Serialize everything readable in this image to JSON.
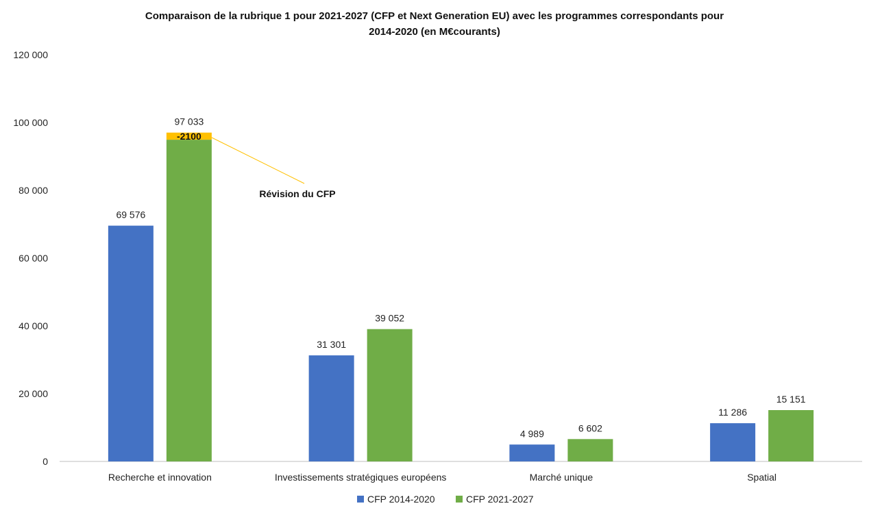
{
  "title_line1": "Comparaison de la rubrique 1 pour 2021-2027 (CFP et Next Generation EU) avec les programmes correspondants pour",
  "title_line2": "2014-2020 (en M€courants)",
  "colors": {
    "series1": "#4472C4",
    "series2": "#70AD47",
    "highlight": "#FFC000",
    "annotation_line": "#FFC000",
    "axis": "#BFBFBF"
  },
  "chart_data": {
    "type": "bar",
    "title": "Comparaison de la rubrique 1 pour 2021-2027 (CFP et Next Generation EU) avec les programmes correspondants pour 2014-2020 (en M€courants)",
    "categories": [
      "Recherche et innovation",
      "Investissements stratégiques européens",
      "Marché unique",
      "Spatial"
    ],
    "series": [
      {
        "name": "CFP 2014-2020",
        "values": [
          69576,
          31301,
          4989,
          11286
        ],
        "labels": [
          "69 576",
          "31 301",
          "4 989",
          "11 286"
        ]
      },
      {
        "name": "CFP 2021-2027",
        "values": [
          97033,
          39052,
          6602,
          15151
        ],
        "labels": [
          "97 033",
          "39 052",
          "6 602",
          "15 151"
        ]
      }
    ],
    "ylim": [
      0,
      120000
    ],
    "yticks": [
      0,
      20000,
      40000,
      60000,
      80000,
      100000,
      120000
    ],
    "ytick_labels": [
      "0",
      "20 000",
      "40 000",
      "60 000",
      "80 000",
      "100 000",
      "120 000"
    ],
    "grid": false,
    "legend_position": "bottom-center",
    "highlight": {
      "category_index": 0,
      "series_index": 1,
      "value": -2100,
      "label": "-2100",
      "annotation": "Révision du CFP"
    }
  }
}
